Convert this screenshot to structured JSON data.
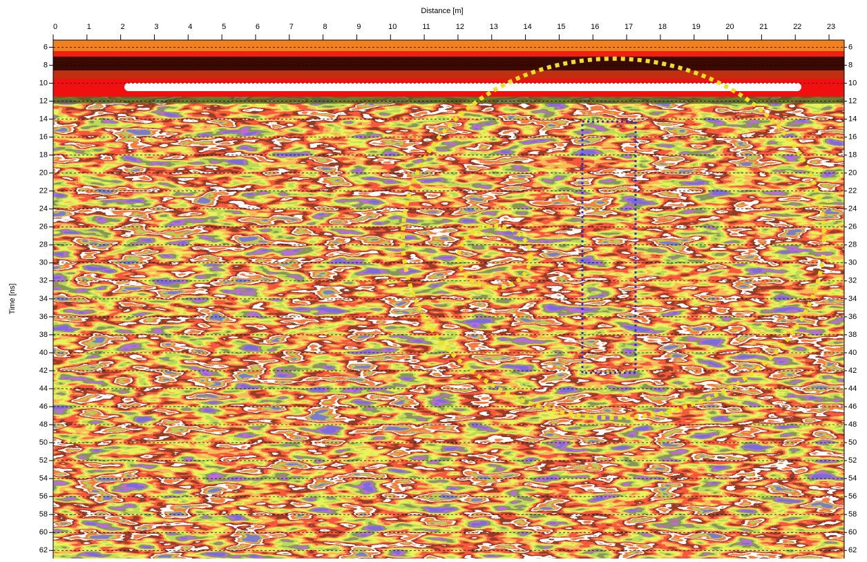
{
  "chart_data": {
    "type": "radargram",
    "x_label": "Distance [m]",
    "y_label": "Time [ns]",
    "xlim": [
      0,
      23.45
    ],
    "ylim": [
      5.2,
      62.9
    ],
    "y_inverted": true,
    "xticks": [
      0,
      1,
      2,
      3,
      4,
      5,
      6,
      7,
      8,
      9,
      10,
      11,
      12,
      13,
      14,
      15,
      16,
      17,
      18,
      19,
      20,
      21,
      22,
      23
    ],
    "yticks": [
      6,
      8,
      10,
      12,
      14,
      16,
      18,
      20,
      22,
      24,
      26,
      28,
      30,
      32,
      34,
      36,
      38,
      40,
      42,
      44,
      46,
      48,
      50,
      52,
      54,
      56,
      58,
      60,
      62
    ],
    "grid": true
  }
}
